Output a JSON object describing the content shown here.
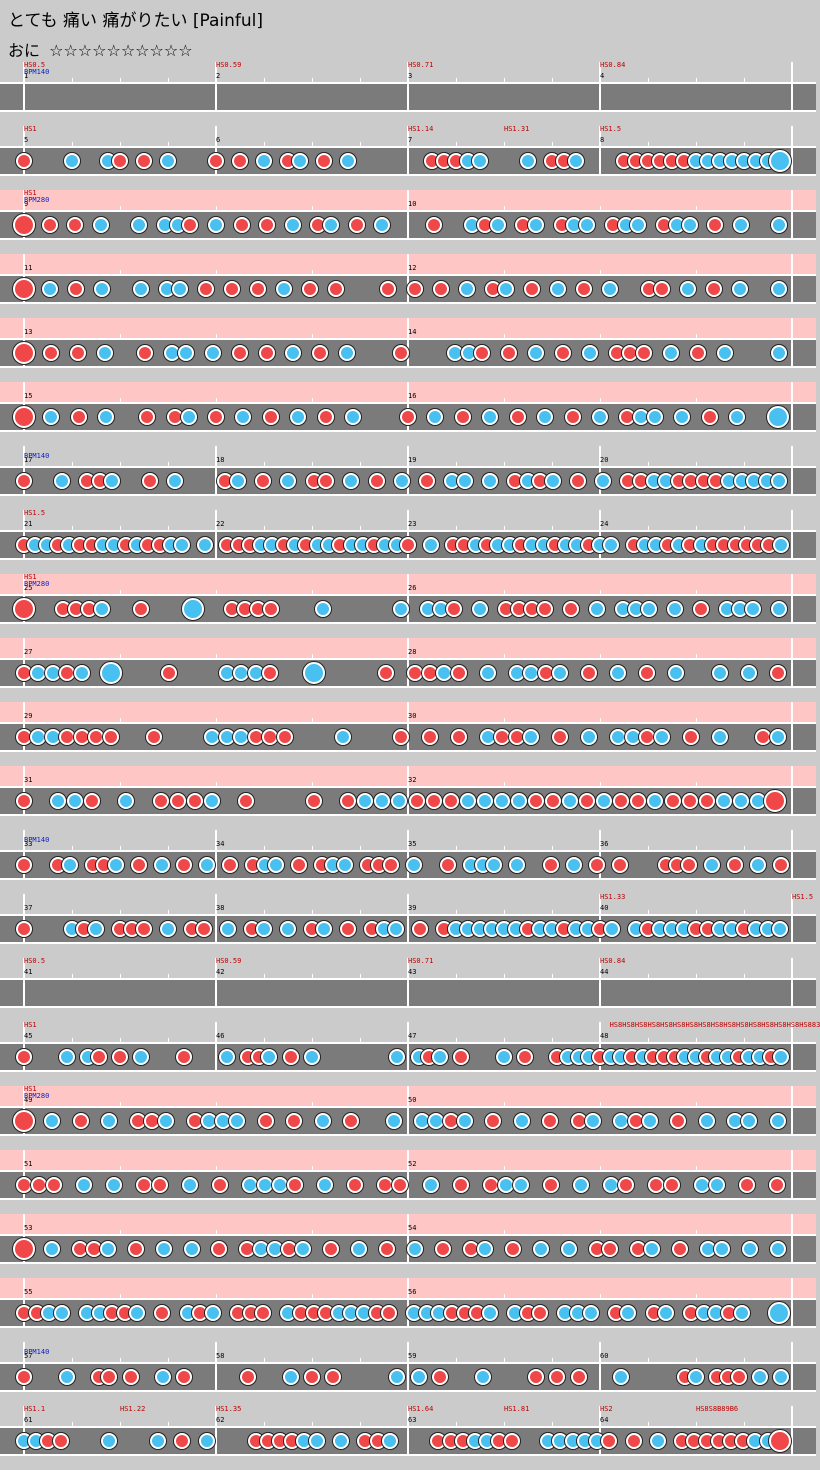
{
  "header": {
    "title": "とても 痛い 痛がりたい [Painful]",
    "course": "おに",
    "stars": "☆☆☆☆☆☆☆☆☆☆"
  },
  "colors": {
    "don": "#f04848",
    "ka": "#48c0f0",
    "gogo": "#ffc6c6",
    "lane": "#7b7b7b",
    "background": "#cbcbcb"
  },
  "rows": [
    {
      "gogo": false,
      "measures": [
        "1",
        "2",
        "3",
        "4"
      ],
      "labels": [
        {
          "m": 0,
          "red": "HS0.5",
          "blue": "BPM140"
        },
        {
          "m": 1,
          "red": "HS0.59"
        },
        {
          "m": 2,
          "red": "HS0.71"
        },
        {
          "m": 3,
          "red": "HS0.84"
        }
      ],
      "notes": ""
    },
    {
      "gogo": false,
      "measures": [
        "5",
        "6",
        "7",
        "8"
      ],
      "labels": [
        {
          "m": 0,
          "red": "HS1"
        },
        {
          "m": 2,
          "red": "HS1.14"
        },
        {
          "m": 2.5,
          "red": "HS1.31"
        },
        {
          "m": 3,
          "red": "HS1.5"
        }
      ],
      "notes": "d...k..kd.d.k...d.d.k.dk.d.k......dddkk...k.ddk...ddddddkkkkkkkK"
    },
    {
      "gogo": true,
      "measures": [
        "9",
        "10"
      ],
      "labels": [
        {
          "m": 0,
          "red": "HS1",
          "blue": "BPM280"
        }
      ],
      "notes": "D.d.d.k..k.kkd.k.d.d.k.dk.d.k...d..kdk.dk.dkk.dkk.dkk.d.k..k"
    },
    {
      "gogo": true,
      "measures": [
        "11",
        "12"
      ],
      "labels": [],
      "notes": "D.k.d.k..k.kk.d.d.d.k.d.d...d.d.d.k.dk.d.k.d.k..dd.k.d.k..k"
    },
    {
      "gogo": true,
      "measures": [
        "13",
        "14"
      ],
      "labels": [],
      "notes": "D.d.d.k..d.kk.k.d.d.k.d.k...d...kkd.d.k.d.k.ddd.k.d.k...k"
    },
    {
      "gogo": true,
      "measures": [
        "15",
        "16"
      ],
      "labels": [],
      "notes": "D.k.d.k..d.dk.d.k.d.k.d.k...d.k.d.k.d.k.d.k.dkk.k.d.k..K"
    },
    {
      "gogo": false,
      "measures": [
        "17",
        "18",
        "19",
        "20"
      ],
      "labels": [
        {
          "m": 0,
          "blue": "BPM140"
        }
      ],
      "notes": "d..k.ddk..d.k...dk.d.k.dd.k.d.k.d.kk.k.dkdk.d.k.ddkkddddkkkkk"
    },
    {
      "gogo": false,
      "measures": [
        "21",
        "22",
        "23",
        "24"
      ],
      "labels": [
        {
          "m": 0,
          "red": "HS1.5"
        }
      ],
      "notes": "dkkdkddkkdkddkk.k.dddkkdkdkkdkkdkkd.k.ddkdkkdkkdkkdkk.dkkdkdkddddddk"
    },
    {
      "gogo": true,
      "measures": [
        "25",
        "26"
      ],
      "labels": [
        {
          "m": 0,
          "red": "HS1",
          "blue": "BPM280"
        }
      ],
      "notes": "D..dddk..d...K..dddd...k.....k.kkd.k.dddd.d.k.kkk.k.d.kkk.k"
    },
    {
      "gogo": true,
      "measures": [
        "27",
        "28"
      ],
      "labels": [],
      "notes": "dkkdk.K...d...kkkd..K....d.ddkd.k.kkdk.d.k.d.k..k.k.d"
    },
    {
      "gogo": true,
      "measures": [
        "29",
        "30"
      ],
      "labels": [],
      "notes": "dkkdddd..d...kkkddd...k...d.d.d.kddk.d.k.kkdk.d.k..dk"
    },
    {
      "gogo": true,
      "measures": [
        "31",
        "32"
      ],
      "labels": [],
      "notes": "d.kkd.k.dddk.d...d.dkkkdddkkkkddkdkddkdddkkkD"
    },
    {
      "gogo": false,
      "measures": [
        "33",
        "34",
        "35",
        "36"
      ],
      "labels": [
        {
          "m": 0,
          "blue": "BPM140"
        }
      ],
      "notes": "d..dk.ddk.d.k.d.k.d.dkk.d.dkk.ddd.k..d.kkk.k..d.k.d.d...ddd.k.d.k.d"
    },
    {
      "gogo": false,
      "measures": [
        "37",
        "38",
        "39",
        "40"
      ],
      "labels": [
        {
          "m": 3,
          "red": "HS1.33"
        },
        {
          "m": 4,
          "red": "HS1.5"
        }
      ],
      "notes": "d...kdk.ddd.k.dd.k.dk.k.dk.d.dkk.d.dkkkkkkdkkdkkdk.kdkkkddkkdkkk"
    },
    {
      "gogo": false,
      "measures": [
        "41",
        "42",
        "43",
        "44"
      ],
      "labels": [
        {
          "m": 0,
          "red": "HS0.5"
        },
        {
          "m": 1,
          "red": "HS0.59"
        },
        {
          "m": 2,
          "red": "HS0.71"
        },
        {
          "m": 3,
          "red": "HS0.84"
        }
      ],
      "notes": ""
    },
    {
      "gogo": false,
      "measures": [
        "45",
        "46",
        "47",
        "48"
      ],
      "labels": [
        {
          "m": 0,
          "red": "HS1"
        },
        {
          "m": 3.05,
          "red": "HS8HS8HS8HS8HS8HS8HS8HS8HS8HS8HS8HS8HS8HS8HS8HS883"
        }
      ],
      "notes": "d...k.kd.d.k...d...k.ddk.d.k.......k.kdk.d...k.d..dkkkdkkdkdddkkdkkdkkdk"
    },
    {
      "gogo": true,
      "measures": [
        "49",
        "50"
      ],
      "labels": [
        {
          "m": 0,
          "red": "HS1",
          "blue": "BPM280"
        }
      ],
      "notes": "D.k.d.k.ddk.dkkk.d.d.k.d..k.kkdk.d.k.d.dk.kdk.d.k.kk.k"
    },
    {
      "gogo": true,
      "measures": [
        "51",
        "52"
      ],
      "labels": [],
      "notes": "ddd.k.k.dd.k.d.kkkd.k.d.dd.k.d.dkk.d.k.kd.dd.kk.d.d"
    },
    {
      "gogo": true,
      "measures": [
        "53",
        "54"
      ],
      "labels": [],
      "notes": "D.k.ddk.d.k.k.d.dkkdk.d.k.d.k.d.dk.d.k.k.dd.dk.d.kk.k.k"
    },
    {
      "gogo": true,
      "measures": [
        "55",
        "56"
      ],
      "labels": [],
      "notes": "ddkk.kkddk.d.kdk.ddd.kdddkkkdd.kkkdddk.kdd.kkk.dk.dk.dkkdk..K"
    },
    {
      "gogo": false,
      "measures": [
        "57",
        "58",
        "59",
        "60"
      ],
      "labels": [
        {
          "m": 0,
          "blue": "BPM140"
        }
      ],
      "notes": "d...k..dd.d..k.d.....d...k.d.d.....k.k.d...k....d.d.d...k.....dk.ddd.k.k"
    },
    {
      "gogo": false,
      "measures": [
        "61",
        "62",
        "63",
        "64"
      ],
      "labels": [
        {
          "m": 0,
          "red": "HS1.1"
        },
        {
          "m": 0.5,
          "red": "HS1.22"
        },
        {
          "m": 1,
          "red": "HS1.35"
        },
        {
          "m": 2,
          "red": "HS1.64"
        },
        {
          "m": 2.5,
          "red": "HS1.81"
        },
        {
          "m": 3,
          "red": "HS2"
        },
        {
          "m": 3.5,
          "red": "HS8S8B89B6"
        }
      ],
      "notes": "kkdd...k...k.d.k...ddddkk.k.ddk...dddkkdd..kkkkkd.d.k.ddddddkkD"
    }
  ]
}
